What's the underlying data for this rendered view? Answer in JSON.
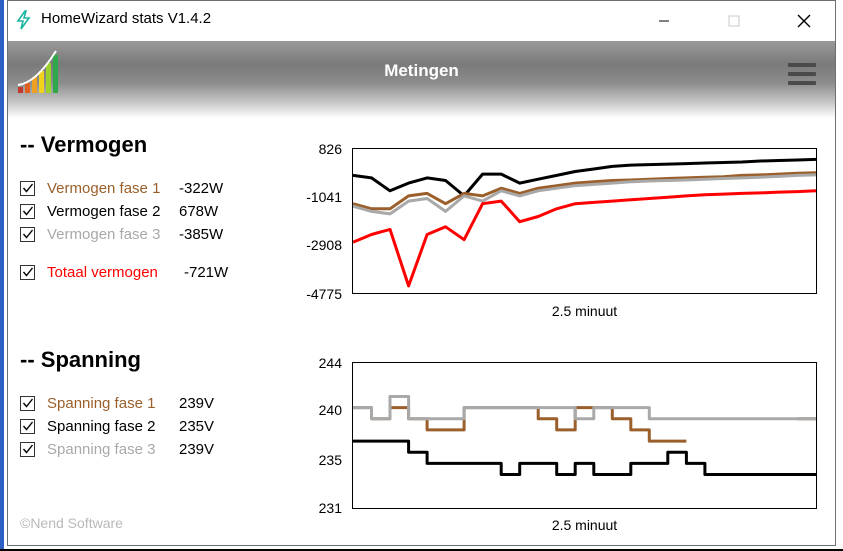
{
  "window": {
    "title": "HomeWizard stats V1.4.2"
  },
  "header": {
    "title": "Metingen"
  },
  "vermogen": {
    "heading": "-- Vermogen",
    "rows": [
      {
        "label": "Vermogen fase 1",
        "value": "-322W",
        "color": "#9a5f2a"
      },
      {
        "label": "Vermogen fase 2",
        "value": "678W",
        "color": "#000000"
      },
      {
        "label": "Vermogen fase 3",
        "value": "-385W",
        "color": "#a9a9a9"
      },
      {
        "label": "Totaal vermogen",
        "value": "-721W",
        "color": "#ff0000"
      }
    ]
  },
  "spanning": {
    "heading": "-- Spanning",
    "rows": [
      {
        "label": "Spanning fase 1",
        "value": "239V",
        "color": "#9a5f2a"
      },
      {
        "label": "Spanning fase 2",
        "value": "235V",
        "color": "#000000"
      },
      {
        "label": "Spanning fase 3",
        "value": "239V",
        "color": "#a9a9a9"
      }
    ]
  },
  "footer": {
    "copyright": "©Nend Software"
  },
  "chart_data": [
    {
      "type": "line",
      "title": "Vermogen",
      "xlabel": "2.5 minuut",
      "ylabel": "",
      "ylim": [
        -4775,
        826
      ],
      "yticks": [
        "826",
        "-1041",
        "-2908",
        "-4775"
      ],
      "x": [
        0,
        4,
        8,
        12,
        16,
        20,
        24,
        28,
        32,
        36,
        40,
        44,
        48,
        52,
        56,
        60,
        64,
        68,
        72,
        76,
        80,
        84,
        88,
        92,
        96,
        100
      ],
      "series": [
        {
          "name": "Vermogen fase 2",
          "color": "#000000",
          "values": [
            -200,
            -300,
            -800,
            -500,
            -300,
            -400,
            -1000,
            -150,
            -150,
            -500,
            -350,
            -200,
            -50,
            50,
            150,
            200,
            220,
            240,
            260,
            280,
            300,
            320,
            360,
            380,
            400,
            420
          ]
        },
        {
          "name": "Vermogen fase 1",
          "color": "#9a5f2a",
          "values": [
            -1300,
            -1500,
            -1500,
            -1000,
            -900,
            -1300,
            -900,
            -1000,
            -700,
            -900,
            -700,
            -600,
            -500,
            -450,
            -400,
            -380,
            -350,
            -320,
            -300,
            -270,
            -250,
            -200,
            -180,
            -150,
            -120,
            -100
          ]
        },
        {
          "name": "Vermogen fase 3",
          "color": "#a9a9a9",
          "values": [
            -1400,
            -1600,
            -1700,
            -1200,
            -1100,
            -1600,
            -1000,
            -1200,
            -800,
            -1000,
            -800,
            -700,
            -600,
            -550,
            -500,
            -450,
            -420,
            -400,
            -380,
            -350,
            -320,
            -300,
            -270,
            -240,
            -200,
            -180
          ]
        },
        {
          "name": "Totaal vermogen",
          "color": "#ff0000",
          "values": [
            -2800,
            -2500,
            -2300,
            -4500,
            -2500,
            -2200,
            -2700,
            -1300,
            -1200,
            -2000,
            -1800,
            -1500,
            -1300,
            -1250,
            -1200,
            -1150,
            -1100,
            -1050,
            -1000,
            -950,
            -930,
            -900,
            -880,
            -850,
            -830,
            -800
          ]
        }
      ]
    },
    {
      "type": "line",
      "title": "Spanning",
      "xlabel": "2.5 minuut",
      "ylabel": "",
      "ylim": [
        231,
        244
      ],
      "yticks": [
        "244",
        "240",
        "235",
        "231"
      ],
      "x": [
        0,
        4,
        8,
        12,
        16,
        20,
        24,
        28,
        32,
        36,
        40,
        44,
        48,
        52,
        56,
        60,
        64,
        68,
        72,
        76,
        80,
        84,
        88,
        92,
        96,
        100
      ],
      "series": [
        {
          "name": "Spanning fase 1",
          "color": "#9a5f2a",
          "values": [
            240,
            239,
            240,
            239,
            238,
            238,
            240,
            240,
            240,
            240,
            239,
            238,
            240,
            240,
            239,
            238,
            237,
            237,
            237,
            null,
            null,
            null,
            null,
            null,
            239,
            239
          ]
        },
        {
          "name": "Spanning fase 3",
          "color": "#a9a9a9",
          "values": [
            240,
            239,
            241,
            239,
            239,
            239,
            240,
            240,
            240,
            240,
            240,
            240,
            239,
            240,
            240,
            240,
            239,
            239,
            239,
            239,
            239,
            239,
            239,
            239,
            239,
            239
          ]
        },
        {
          "name": "Spanning fase 2",
          "color": "#000000",
          "values": [
            237,
            237,
            237,
            236,
            235,
            235,
            235,
            235,
            234,
            235,
            235,
            234,
            235,
            234,
            234,
            235,
            235,
            236,
            235,
            234,
            234,
            234,
            234,
            234,
            234,
            234
          ]
        }
      ]
    }
  ]
}
